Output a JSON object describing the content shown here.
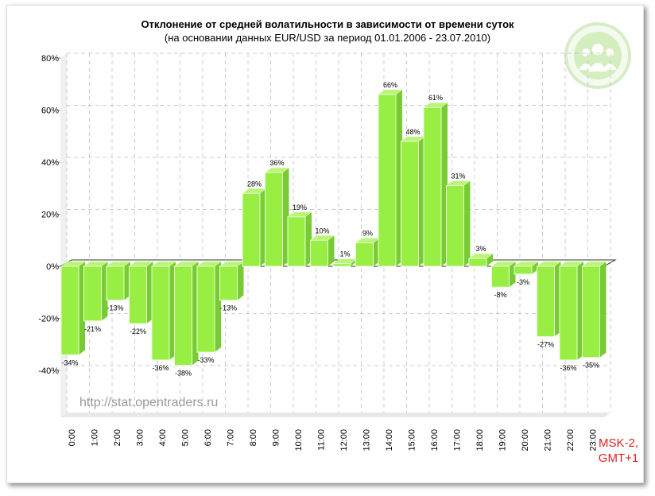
{
  "chart_data": {
    "type": "bar",
    "title": "Отклонение от средней волатильности в зависимости от времени суток",
    "subtitle": "(на основании данных EUR/USD за период 01.01.2006 - 23.07.2010)",
    "categories": [
      "0:00",
      "1:00",
      "2:00",
      "3:00",
      "4:00",
      "5:00",
      "6:00",
      "7:00",
      "8:00",
      "9:00",
      "10:00",
      "11:00",
      "12:00",
      "13:00",
      "14:00",
      "15:00",
      "16:00",
      "17:00",
      "18:00",
      "19:00",
      "20:00",
      "21:00",
      "22:00",
      "23:00"
    ],
    "values": [
      -34,
      -21,
      -13,
      -22,
      -36,
      -38,
      -33,
      -13,
      28,
      36,
      19,
      10,
      1,
      9,
      66,
      48,
      61,
      31,
      3,
      -8,
      -3,
      -27,
      -36,
      -35
    ],
    "data_labels": [
      "-34%",
      "-21%",
      "-13%",
      "-22%",
      "-36%",
      "-38%",
      "-33%",
      "-13%",
      "28%",
      "36%",
      "19%",
      "10%",
      "1%",
      "9%",
      "66%",
      "48%",
      "61%",
      "31%",
      "3%",
      "-8%",
      "-3%",
      "-27%",
      "-36%",
      "-35%"
    ],
    "y_ticks": [
      "80%",
      "60%",
      "40%",
      "20%",
      "0%",
      "-20%",
      "-40%"
    ],
    "ylim": [
      -60,
      80
    ],
    "grid": true,
    "bar_color": "#99ee44",
    "timezone_note": [
      "MSK-2,",
      "GMT+1"
    ],
    "timezone_note_color": "#dd2222",
    "watermark": "http://stat.opentraders.ru",
    "logo": "opentraders-people-logo"
  }
}
